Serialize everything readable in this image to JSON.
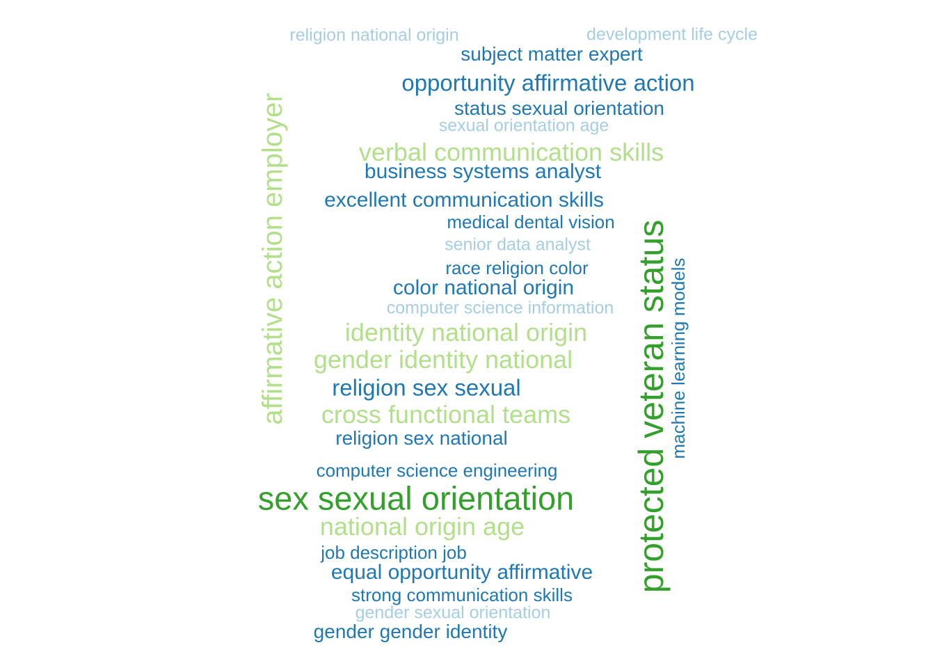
{
  "chart_data": {
    "type": "wordcloud",
    "title": "",
    "color_scale": {
      "1": "#a6cee3",
      "2": "#1f78b4",
      "3": "#b2df8a",
      "4": "#33a02c"
    },
    "words": [
      {
        "text": "protected veteran status",
        "freq": 9,
        "color_tier": 4
      },
      {
        "text": "sex sexual orientation",
        "freq": 8,
        "color_tier": 4
      },
      {
        "text": "affirmative action employer",
        "freq": 6,
        "color_tier": 3
      },
      {
        "text": "verbal communication skills",
        "freq": 5,
        "color_tier": 3
      },
      {
        "text": "identity national origin",
        "freq": 5,
        "color_tier": 3
      },
      {
        "text": "gender identity national",
        "freq": 5,
        "color_tier": 3
      },
      {
        "text": "cross functional teams",
        "freq": 5,
        "color_tier": 3
      },
      {
        "text": "national origin age",
        "freq": 5,
        "color_tier": 3
      },
      {
        "text": "opportunity affirmative action",
        "freq": 4,
        "color_tier": 2
      },
      {
        "text": "religion sex sexual",
        "freq": 4,
        "color_tier": 2
      },
      {
        "text": "business systems analyst",
        "freq": 3,
        "color_tier": 2
      },
      {
        "text": "excellent communication skills",
        "freq": 3,
        "color_tier": 2
      },
      {
        "text": "color national origin",
        "freq": 3,
        "color_tier": 2
      },
      {
        "text": "equal opportunity affirmative",
        "freq": 3,
        "color_tier": 2
      },
      {
        "text": "subject matter expert",
        "freq": 3,
        "color_tier": 2
      },
      {
        "text": "status sexual orientation",
        "freq": 3,
        "color_tier": 2
      },
      {
        "text": "religion sex national",
        "freq": 3,
        "color_tier": 2
      },
      {
        "text": "gender gender identity",
        "freq": 3,
        "color_tier": 2
      },
      {
        "text": "machine learning models",
        "freq": 2,
        "color_tier": 2
      },
      {
        "text": "medical dental vision",
        "freq": 2,
        "color_tier": 2
      },
      {
        "text": "race religion color",
        "freq": 2,
        "color_tier": 2
      },
      {
        "text": "computer science engineering",
        "freq": 2,
        "color_tier": 2
      },
      {
        "text": "job description job",
        "freq": 2,
        "color_tier": 2
      },
      {
        "text": "strong communication skills",
        "freq": 2,
        "color_tier": 2
      },
      {
        "text": "religion national origin",
        "freq": 1,
        "color_tier": 1
      },
      {
        "text": "development life cycle",
        "freq": 1,
        "color_tier": 1
      },
      {
        "text": "sexual orientation age",
        "freq": 1,
        "color_tier": 1
      },
      {
        "text": "senior data analyst",
        "freq": 1,
        "color_tier": 1
      },
      {
        "text": "computer science information",
        "freq": 1,
        "color_tier": 1
      },
      {
        "text": "gender sexual orientation",
        "freq": 1,
        "color_tier": 1
      }
    ]
  }
}
